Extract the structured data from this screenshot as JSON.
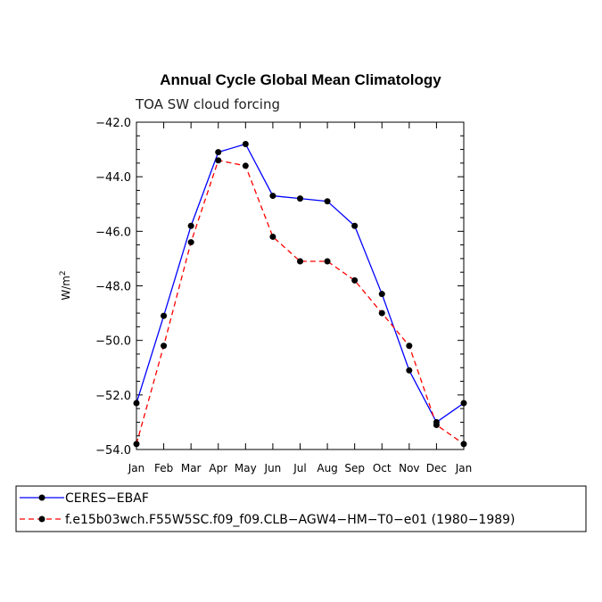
{
  "chart_data": {
    "type": "line",
    "title": "Annual Cycle Global Mean Climatology",
    "subtitle": "TOA SW cloud forcing",
    "ylabel": "W/m",
    "ylabel_sup": "2",
    "xlabel": "",
    "categories": [
      "Jan",
      "Feb",
      "Mar",
      "Apr",
      "May",
      "Jun",
      "Jul",
      "Aug",
      "Sep",
      "Oct",
      "Nov",
      "Dec",
      "Jan"
    ],
    "ylim": [
      -54.0,
      -42.0
    ],
    "yticks": [
      -42.0,
      -44.0,
      -46.0,
      -48.0,
      -50.0,
      -52.0,
      -54.0
    ],
    "ytick_labels": [
      "−42.0",
      "−44.0",
      "−46.0",
      "−48.0",
      "−50.0",
      "−52.0",
      "−54.0"
    ],
    "grid": false,
    "legend_position": "bottom",
    "series": [
      {
        "name": "CERES−EBAF",
        "color": "#0000ff",
        "dash": "solid",
        "values": [
          -52.3,
          -49.1,
          -45.8,
          -43.1,
          -42.8,
          -44.7,
          -44.8,
          -44.9,
          -45.8,
          -48.3,
          -51.1,
          -53.0,
          -52.3
        ]
      },
      {
        "name": "f.e15b03wch.F55W5SC.f09_f09.CLB−AGW4−HM−T0−e01 (1980−1989)",
        "color": "#ff0000",
        "dash": "dashed",
        "values": [
          -53.8,
          -50.2,
          -46.4,
          -43.4,
          -43.6,
          -46.2,
          -47.1,
          -47.1,
          -47.8,
          -49.0,
          -50.2,
          -53.1,
          -53.8
        ]
      }
    ]
  }
}
